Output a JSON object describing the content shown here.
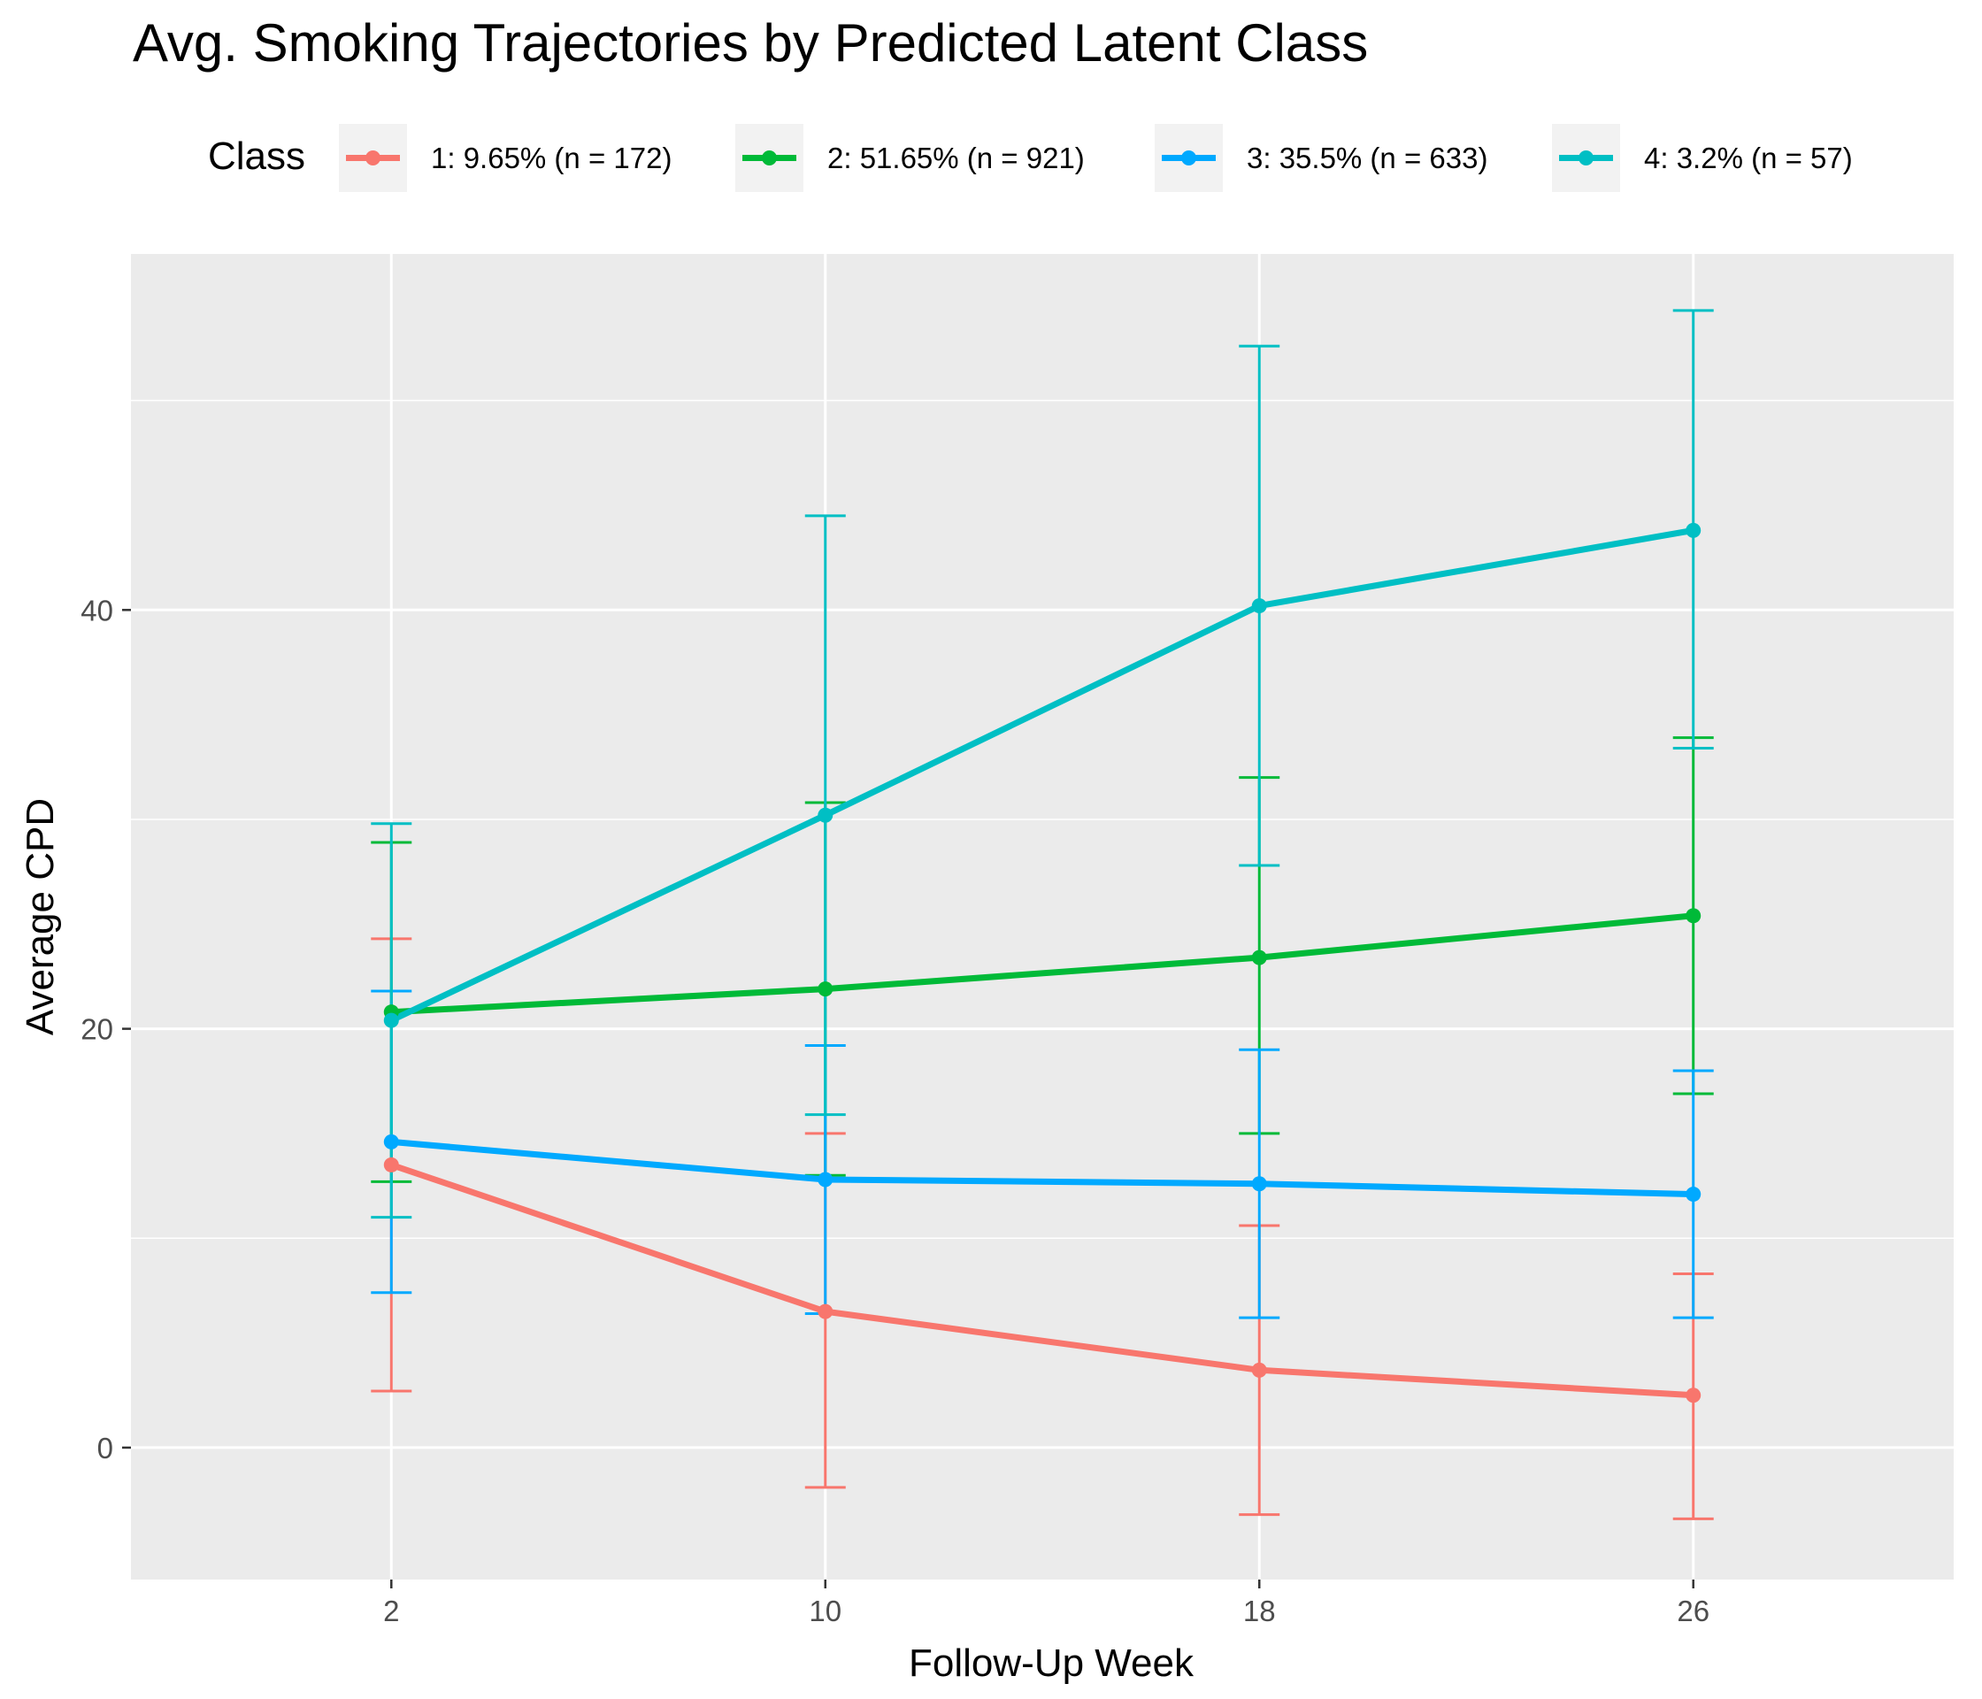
{
  "chart_data": {
    "type": "line",
    "title": "Avg. Smoking Trajectories by Predicted Latent Class",
    "xlabel": "Follow-Up Week",
    "ylabel": "Average CPD",
    "x": [
      2,
      10,
      18,
      26
    ],
    "x_tick_labels": [
      "2",
      "10",
      "18",
      "26"
    ],
    "xlim": [
      -2.8,
      30.8
    ],
    "y_ticks": [
      0,
      20,
      40
    ],
    "y_tick_labels": [
      "0",
      "20",
      "40"
    ],
    "ylim": [
      -6.3,
      57.0
    ],
    "grid": true,
    "legend": {
      "title": "Class",
      "position": "top"
    },
    "series": [
      {
        "name": "1: 9.65% (n = 172)",
        "color": "#F8766D",
        "values": [
          13.5,
          6.5,
          3.7,
          2.5
        ],
        "lower": [
          2.7,
          -1.9,
          -3.2,
          -3.4
        ],
        "upper": [
          24.3,
          15.0,
          10.6,
          8.3
        ]
      },
      {
        "name": "2: 51.65% (n = 921)",
        "color": "#00BA38",
        "values": [
          20.8,
          21.9,
          23.4,
          25.4
        ],
        "lower": [
          12.7,
          13.0,
          15.0,
          16.9
        ],
        "upper": [
          28.9,
          30.8,
          32.0,
          33.9
        ]
      },
      {
        "name": "3: 35.5% (n = 633)",
        "color": "#00A9FF",
        "values": [
          14.6,
          12.8,
          12.6,
          12.1
        ],
        "lower": [
          7.4,
          6.4,
          6.2,
          6.2
        ],
        "upper": [
          21.8,
          19.2,
          19.0,
          18.0
        ]
      },
      {
        "name": "4: 3.2% (n = 57)",
        "color": "#00BFC4",
        "values": [
          20.4,
          30.2,
          40.2,
          43.8
        ],
        "lower": [
          11.0,
          15.9,
          27.8,
          33.4
        ],
        "upper": [
          29.8,
          44.5,
          52.6,
          54.3
        ]
      }
    ]
  }
}
